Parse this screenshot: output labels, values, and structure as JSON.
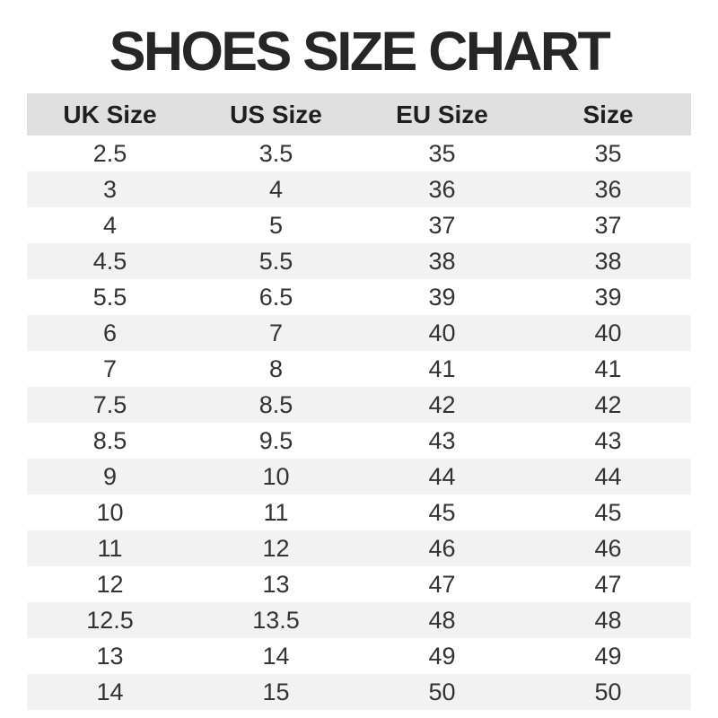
{
  "chart_data": {
    "type": "table",
    "title": "SHOES SIZE CHART",
    "columns": [
      "UK Size",
      "US Size",
      "EU Size",
      "Size"
    ],
    "rows": [
      [
        "2.5",
        "3.5",
        "35",
        "35"
      ],
      [
        "3",
        "4",
        "36",
        "36"
      ],
      [
        "4",
        "5",
        "37",
        "37"
      ],
      [
        "4.5",
        "5.5",
        "38",
        "38"
      ],
      [
        "5.5",
        "6.5",
        "39",
        "39"
      ],
      [
        "6",
        "7",
        "40",
        "40"
      ],
      [
        "7",
        "8",
        "41",
        "41"
      ],
      [
        "7.5",
        "8.5",
        "42",
        "42"
      ],
      [
        "8.5",
        "9.5",
        "43",
        "43"
      ],
      [
        "9",
        "10",
        "44",
        "44"
      ],
      [
        "10",
        "11",
        "45",
        "45"
      ],
      [
        "11",
        "12",
        "46",
        "46"
      ],
      [
        "12",
        "13",
        "47",
        "47"
      ],
      [
        "12.5",
        "13.5",
        "48",
        "48"
      ],
      [
        "13",
        "14",
        "49",
        "49"
      ],
      [
        "14",
        "15",
        "50",
        "50"
      ]
    ],
    "layout": {
      "stripe_pattern": "even rows shaded, first data row white",
      "column_alignment": "center"
    }
  },
  "colors": {
    "title_text": "#262626",
    "header_bg": "#e0e0e0",
    "header_text": "#1f1f1f",
    "stripe_bg": "#f2f2f2",
    "body_text": "#333333",
    "background": "#ffffff"
  }
}
